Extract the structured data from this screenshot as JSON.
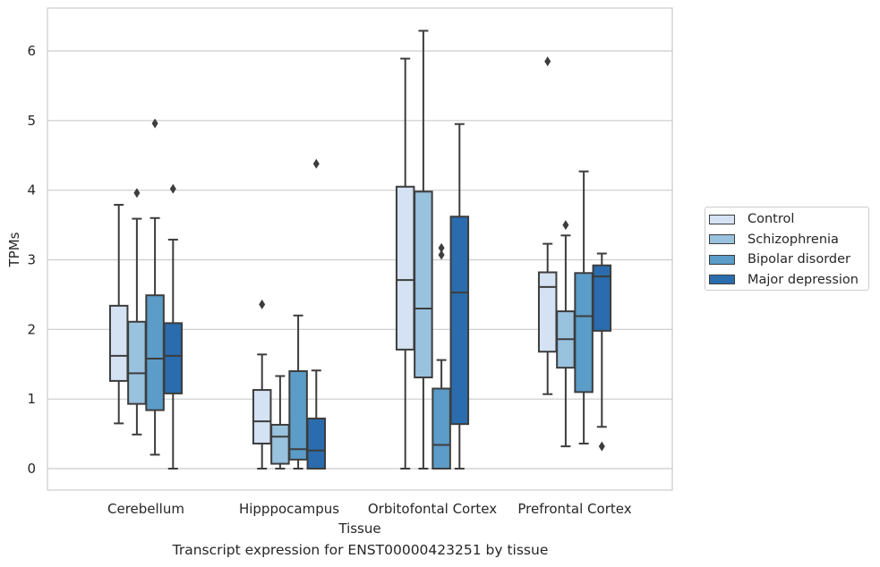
{
  "caption": "Transcript expression for ENST00000423251 by tissue",
  "chart_data": {
    "type": "box",
    "xlabel": "Tissue",
    "ylabel": "TPMs",
    "ylim": [
      -0.3,
      6.6
    ],
    "yticks": [
      0,
      1,
      2,
      3,
      4,
      5,
      6
    ],
    "grid": "horizontal",
    "legend_position": "right",
    "categories": [
      "Cerebellum",
      "Hipppocampus",
      "Orbitofontal Cortex",
      "Prefrontal Cortex"
    ],
    "series": [
      {
        "name": "Control",
        "color": "#d4e2f3",
        "boxes": [
          {
            "whisker_low": 0.65,
            "q1": 1.26,
            "median": 1.62,
            "q3": 2.34,
            "whisker_high": 3.79,
            "outliers": []
          },
          {
            "whisker_low": 0.0,
            "q1": 0.36,
            "median": 0.68,
            "q3": 1.13,
            "whisker_high": 1.64,
            "outliers": [
              2.36
            ]
          },
          {
            "whisker_low": 0.0,
            "q1": 1.71,
            "median": 2.71,
            "q3": 4.05,
            "whisker_high": 5.89,
            "outliers": []
          },
          {
            "whisker_low": 1.07,
            "q1": 1.68,
            "median": 2.61,
            "q3": 2.82,
            "whisker_high": 3.23,
            "outliers": [
              5.85
            ]
          }
        ]
      },
      {
        "name": "Schizophrenia",
        "color": "#99c2de",
        "boxes": [
          {
            "whisker_low": 0.49,
            "q1": 0.93,
            "median": 1.37,
            "q3": 2.11,
            "whisker_high": 3.59,
            "outliers": [
              3.96
            ]
          },
          {
            "whisker_low": 0.0,
            "q1": 0.07,
            "median": 0.46,
            "q3": 0.63,
            "whisker_high": 1.33,
            "outliers": []
          },
          {
            "whisker_low": 0.0,
            "q1": 1.31,
            "median": 2.3,
            "q3": 3.98,
            "whisker_high": 6.29,
            "outliers": []
          },
          {
            "whisker_low": 0.32,
            "q1": 1.45,
            "median": 1.86,
            "q3": 2.26,
            "whisker_high": 3.35,
            "outliers": [
              3.5
            ]
          }
        ]
      },
      {
        "name": "Bipolar disorder",
        "color": "#5b9cc8",
        "boxes": [
          {
            "whisker_low": 0.2,
            "q1": 0.84,
            "median": 1.58,
            "q3": 2.49,
            "whisker_high": 3.6,
            "outliers": [
              4.96
            ]
          },
          {
            "whisker_low": 0.0,
            "q1": 0.13,
            "median": 0.28,
            "q3": 1.4,
            "whisker_high": 2.2,
            "outliers": []
          },
          {
            "whisker_low": 0.0,
            "q1": 0.0,
            "median": 0.34,
            "q3": 1.15,
            "whisker_high": 1.56,
            "outliers": [
              3.07,
              3.17
            ]
          },
          {
            "whisker_low": 0.36,
            "q1": 1.1,
            "median": 2.19,
            "q3": 2.81,
            "whisker_high": 4.27,
            "outliers": []
          }
        ]
      },
      {
        "name": "Major depression",
        "color": "#2a6cad",
        "boxes": [
          {
            "whisker_low": 0.0,
            "q1": 1.08,
            "median": 1.62,
            "q3": 2.09,
            "whisker_high": 3.29,
            "outliers": [
              4.02
            ]
          },
          {
            "whisker_low": 0.0,
            "q1": 0.0,
            "median": 0.26,
            "q3": 0.72,
            "whisker_high": 1.41,
            "outliers": [
              4.38
            ]
          },
          {
            "whisker_low": 0.0,
            "q1": 0.64,
            "median": 2.53,
            "q3": 3.62,
            "whisker_high": 4.95,
            "outliers": []
          },
          {
            "whisker_low": 0.6,
            "q1": 1.98,
            "median": 2.76,
            "q3": 2.92,
            "whisker_high": 3.09,
            "outliers": [
              0.32
            ]
          }
        ]
      }
    ]
  }
}
